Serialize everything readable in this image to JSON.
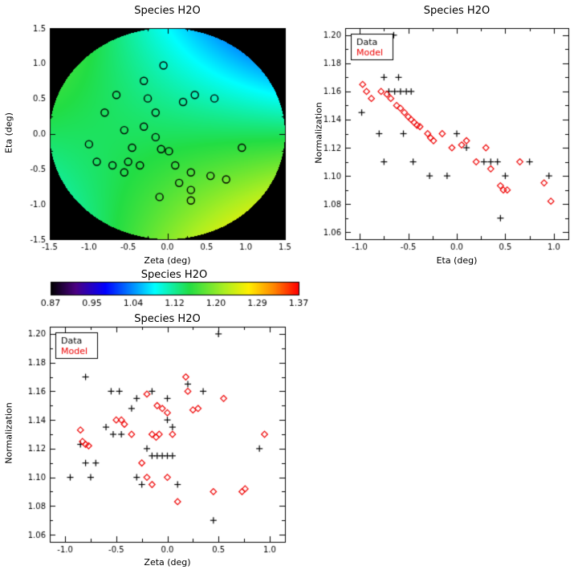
{
  "figure": {
    "background": "#ffffff"
  },
  "colors": {
    "axis": "#000000",
    "data_marker": "#000000",
    "model_marker": "#ee0000"
  },
  "colormap": {
    "stops": [
      {
        "t": 0.0,
        "color": "#000000"
      },
      {
        "t": 0.1,
        "color": "#4b0082"
      },
      {
        "t": 0.22,
        "color": "#0000ff"
      },
      {
        "t": 0.42,
        "color": "#00ffff"
      },
      {
        "t": 0.56,
        "color": "#22dd44"
      },
      {
        "t": 0.7,
        "color": "#aaee22"
      },
      {
        "t": 0.8,
        "color": "#ffee00"
      },
      {
        "t": 0.9,
        "color": "#ff8800"
      },
      {
        "t": 1.0,
        "color": "#ff0000"
      }
    ]
  },
  "colorbar": {
    "title": "Species H2O",
    "range": [
      0.87,
      1.37
    ],
    "tick_labels": [
      "0.87",
      "0.95",
      "1.04",
      "1.12",
      "1.20",
      "1.29",
      "1.37"
    ]
  },
  "chart_data": [
    {
      "id": "sky-map",
      "type": "heatmap",
      "title": "Species H2O",
      "xlabel": "Zeta (deg)",
      "ylabel": "Eta (deg)",
      "xlim": [
        -1.5,
        1.5
      ],
      "ylim": [
        -1.5,
        1.5
      ],
      "xticks": [
        -1.5,
        -1.0,
        -0.5,
        0.0,
        0.5,
        1.0,
        1.5
      ],
      "xtick_labels": [
        "-1.5",
        "-1.0",
        "-0.5",
        "0.0",
        "0.5",
        "1.0",
        "1.5"
      ],
      "yticks": [
        -1.5,
        -1.0,
        -0.5,
        0.0,
        0.5,
        1.0,
        1.5
      ],
      "ytick_labels": [
        "-1.5",
        "-1.0",
        "-0.5",
        "0.0",
        "0.5",
        "1.0",
        "1.5"
      ],
      "value_range": [
        0.87,
        1.37
      ],
      "field": {
        "shape": "disk",
        "radius": 1.5,
        "base": 1.14,
        "eta_slope": -0.04,
        "zeta_eta_cross": -0.05,
        "background": "#000000"
      },
      "circle_markers": [
        [
          -0.65,
          0.55
        ],
        [
          -0.3,
          0.75
        ],
        [
          -0.05,
          0.97
        ],
        [
          -0.25,
          0.5
        ],
        [
          0.2,
          0.45
        ],
        [
          0.35,
          0.55
        ],
        [
          0.6,
          0.5
        ],
        [
          -0.8,
          0.3
        ],
        [
          -0.15,
          0.3
        ],
        [
          -1.0,
          -0.15
        ],
        [
          -0.55,
          0.05
        ],
        [
          -0.3,
          0.1
        ],
        [
          -0.45,
          -0.2
        ],
        [
          -0.15,
          -0.05
        ],
        [
          -0.08,
          -0.22
        ],
        [
          0.02,
          -0.25
        ],
        [
          -0.9,
          -0.4
        ],
        [
          -0.7,
          -0.45
        ],
        [
          -0.55,
          -0.55
        ],
        [
          -0.5,
          -0.4
        ],
        [
          -0.35,
          -0.45
        ],
        [
          0.1,
          -0.45
        ],
        [
          0.3,
          -0.55
        ],
        [
          0.55,
          -0.6
        ],
        [
          0.75,
          -0.65
        ],
        [
          0.15,
          -0.7
        ],
        [
          0.3,
          -0.8
        ],
        [
          -0.1,
          -0.9
        ],
        [
          0.3,
          -0.95
        ],
        [
          0.95,
          -0.2
        ]
      ]
    },
    {
      "id": "norm-vs-eta",
      "type": "scatter",
      "title": "Species H2O",
      "xlabel": "Eta (deg)",
      "ylabel": "Normalization",
      "xlim": [
        -1.15,
        1.15
      ],
      "ylim": [
        1.055,
        1.205
      ],
      "xticks": [
        -1.0,
        -0.5,
        0.0,
        0.5,
        1.0
      ],
      "xtick_labels": [
        "-1.0",
        "-0.5",
        "0.0",
        "0.5",
        "1.0"
      ],
      "yticks": [
        1.06,
        1.08,
        1.1,
        1.12,
        1.14,
        1.16,
        1.18,
        1.2
      ],
      "ytick_labels": [
        "1.06",
        "1.08",
        "1.10",
        "1.12",
        "1.14",
        "1.16",
        "1.18",
        "1.20"
      ],
      "legend": {
        "position": "top-left"
      },
      "series": [
        {
          "name": "Data",
          "marker": "plus",
          "color": "#000000",
          "points": [
            [
              -0.65,
              1.2
            ],
            [
              -0.98,
              1.145
            ],
            [
              -0.75,
              1.17
            ],
            [
              -0.6,
              1.17
            ],
            [
              -0.7,
              1.16
            ],
            [
              -0.64,
              1.16
            ],
            [
              -0.58,
              1.16
            ],
            [
              -0.52,
              1.16
            ],
            [
              -0.47,
              1.16
            ],
            [
              -0.8,
              1.13
            ],
            [
              -0.55,
              1.13
            ],
            [
              -0.75,
              1.11
            ],
            [
              -0.45,
              1.11
            ],
            [
              -0.28,
              1.1
            ],
            [
              -0.1,
              1.1
            ],
            [
              0.0,
              1.13
            ],
            [
              0.1,
              1.12
            ],
            [
              0.28,
              1.11
            ],
            [
              0.35,
              1.11
            ],
            [
              0.42,
              1.11
            ],
            [
              0.5,
              1.1
            ],
            [
              0.45,
              1.07
            ],
            [
              0.75,
              1.11
            ],
            [
              0.95,
              1.1
            ]
          ]
        },
        {
          "name": "Model",
          "marker": "diamond",
          "color": "#ee0000",
          "points": [
            [
              -0.97,
              1.165
            ],
            [
              -0.93,
              1.16
            ],
            [
              -0.88,
              1.155
            ],
            [
              -0.78,
              1.16
            ],
            [
              -0.72,
              1.158
            ],
            [
              -0.68,
              1.155
            ],
            [
              -0.62,
              1.15
            ],
            [
              -0.58,
              1.148
            ],
            [
              -0.54,
              1.145
            ],
            [
              -0.5,
              1.142
            ],
            [
              -0.47,
              1.14
            ],
            [
              -0.44,
              1.138
            ],
            [
              -0.41,
              1.136
            ],
            [
              -0.38,
              1.135
            ],
            [
              -0.3,
              1.13
            ],
            [
              -0.27,
              1.127
            ],
            [
              -0.24,
              1.125
            ],
            [
              -0.15,
              1.13
            ],
            [
              -0.05,
              1.12
            ],
            [
              0.05,
              1.122
            ],
            [
              0.1,
              1.125
            ],
            [
              0.2,
              1.11
            ],
            [
              0.3,
              1.12
            ],
            [
              0.35,
              1.105
            ],
            [
              0.45,
              1.093
            ],
            [
              0.48,
              1.09
            ],
            [
              0.52,
              1.09
            ],
            [
              0.65,
              1.11
            ],
            [
              0.9,
              1.095
            ],
            [
              0.97,
              1.082
            ]
          ]
        }
      ]
    },
    {
      "id": "norm-vs-zeta",
      "type": "scatter",
      "title": "Species H2O",
      "xlabel": "Zeta (deg)",
      "ylabel": "Normalization",
      "xlim": [
        -1.15,
        1.15
      ],
      "ylim": [
        1.055,
        1.205
      ],
      "xticks": [
        -1.0,
        -0.5,
        0.0,
        0.5,
        1.0
      ],
      "xtick_labels": [
        "-1.0",
        "-0.5",
        "0.0",
        "0.5",
        "1.0"
      ],
      "yticks": [
        1.06,
        1.08,
        1.1,
        1.12,
        1.14,
        1.16,
        1.18,
        1.2
      ],
      "ytick_labels": [
        "1.06",
        "1.08",
        "1.10",
        "1.12",
        "1.14",
        "1.16",
        "1.18",
        "1.20"
      ],
      "legend": {
        "position": "top-left"
      },
      "series": [
        {
          "name": "Data",
          "marker": "plus",
          "color": "#000000",
          "points": [
            [
              0.5,
              1.2
            ],
            [
              -0.8,
              1.17
            ],
            [
              -0.55,
              1.16
            ],
            [
              -0.47,
              1.16
            ],
            [
              -0.3,
              1.155
            ],
            [
              -0.15,
              1.16
            ],
            [
              0.0,
              1.155
            ],
            [
              0.2,
              1.165
            ],
            [
              0.35,
              1.16
            ],
            [
              -0.35,
              1.148
            ],
            [
              0.0,
              1.14
            ],
            [
              0.05,
              1.135
            ],
            [
              -0.6,
              1.135
            ],
            [
              -0.53,
              1.13
            ],
            [
              -0.45,
              1.13
            ],
            [
              -0.85,
              1.123
            ],
            [
              -0.8,
              1.11
            ],
            [
              -0.7,
              1.11
            ],
            [
              -0.2,
              1.12
            ],
            [
              -0.15,
              1.115
            ],
            [
              -0.1,
              1.115
            ],
            [
              -0.05,
              1.115
            ],
            [
              0.0,
              1.115
            ],
            [
              0.05,
              1.115
            ],
            [
              -0.95,
              1.1
            ],
            [
              -0.75,
              1.1
            ],
            [
              -0.3,
              1.1
            ],
            [
              -0.25,
              1.095
            ],
            [
              0.1,
              1.095
            ],
            [
              0.9,
              1.12
            ],
            [
              0.45,
              1.07
            ]
          ]
        },
        {
          "name": "Model",
          "marker": "diamond",
          "color": "#ee0000",
          "points": [
            [
              -0.85,
              1.133
            ],
            [
              -0.83,
              1.125
            ],
            [
              -0.8,
              1.123
            ],
            [
              -0.77,
              1.122
            ],
            [
              -0.5,
              1.14
            ],
            [
              -0.45,
              1.14
            ],
            [
              -0.42,
              1.137
            ],
            [
              -0.35,
              1.13
            ],
            [
              -0.2,
              1.158
            ],
            [
              -0.1,
              1.15
            ],
            [
              -0.05,
              1.148
            ],
            [
              0.0,
              1.145
            ],
            [
              -0.15,
              1.13
            ],
            [
              -0.11,
              1.128
            ],
            [
              -0.08,
              1.13
            ],
            [
              0.05,
              1.13
            ],
            [
              0.18,
              1.17
            ],
            [
              0.2,
              1.16
            ],
            [
              0.25,
              1.147
            ],
            [
              0.3,
              1.148
            ],
            [
              0.55,
              1.155
            ],
            [
              0.45,
              1.09
            ],
            [
              0.73,
              1.09
            ],
            [
              0.76,
              1.092
            ],
            [
              0.95,
              1.13
            ],
            [
              -0.25,
              1.11
            ],
            [
              -0.2,
              1.1
            ],
            [
              -0.15,
              1.095
            ],
            [
              0.0,
              1.1
            ],
            [
              0.1,
              1.083
            ]
          ]
        }
      ]
    }
  ]
}
